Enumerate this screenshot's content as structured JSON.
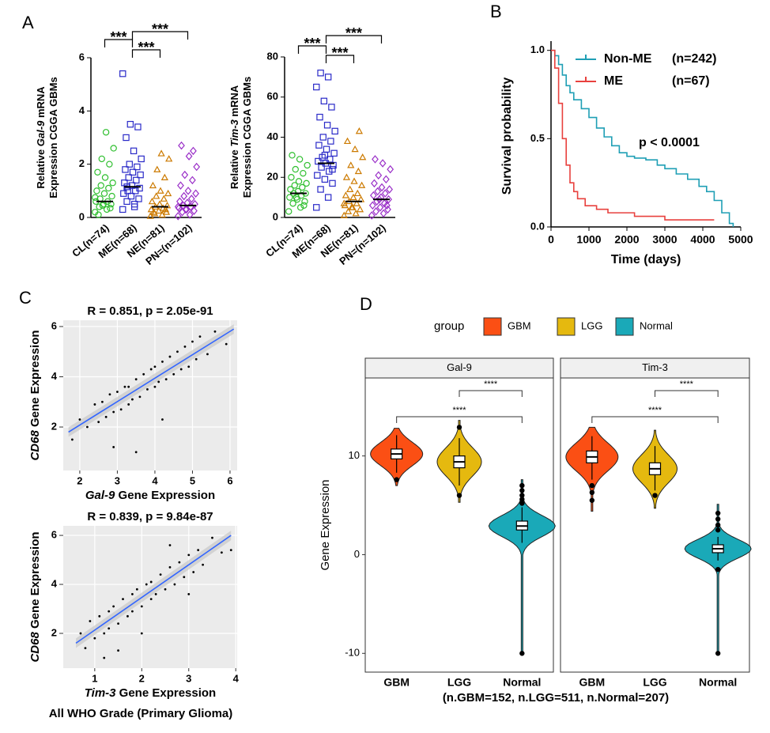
{
  "panel_labels": [
    "A",
    "B",
    "C",
    "D"
  ],
  "chart_data": [
    {
      "type": "strip",
      "ylabel": [
        [
          {
            "text": "Relative "
          },
          {
            "text": "Gal-9",
            "italic": true
          },
          {
            "text": " mRNA"
          }
        ],
        [
          {
            "text": "Expression CGGA GBMs"
          }
        ]
      ],
      "categories": [
        "CL(n=74)",
        "ME(n=68)",
        "NE(n=81)",
        "PN=(n=102)"
      ],
      "ylim": [
        0,
        6
      ],
      "yticks": [
        0,
        2,
        4,
        6
      ],
      "series": [
        {
          "color": "#2fbf2f",
          "marker": "circle",
          "median": 0.6,
          "values": [
            0.2,
            0.3,
            0.4,
            0.5,
            0.5,
            0.6,
            0.6,
            0.7,
            0.8,
            0.9,
            1.0,
            1.1,
            1.2,
            1.3,
            1.5,
            1.7,
            2.0,
            2.2,
            2.6,
            3.2,
            0.1,
            0.35,
            0.45,
            0.75
          ]
        },
        {
          "color": "#2a2ac8",
          "marker": "square",
          "median": 1.15,
          "values": [
            0.3,
            0.5,
            0.6,
            0.7,
            0.8,
            0.9,
            1.0,
            1.0,
            1.1,
            1.2,
            1.3,
            1.4,
            1.5,
            1.6,
            1.7,
            1.8,
            1.9,
            2.0,
            2.2,
            2.5,
            3.0,
            3.4,
            3.5,
            5.4,
            0.4,
            1.15
          ]
        },
        {
          "color": "#cc7a00",
          "marker": "triangle",
          "median": 0.4,
          "values": [
            0.05,
            0.1,
            0.15,
            0.2,
            0.25,
            0.3,
            0.35,
            0.4,
            0.45,
            0.5,
            0.6,
            0.7,
            0.8,
            0.9,
            1.0,
            1.2,
            1.5,
            1.8,
            2.2,
            2.4,
            0.2,
            0.3
          ]
        },
        {
          "color": "#9a2fc8",
          "marker": "diamond",
          "median": 0.45,
          "values": [
            0.05,
            0.1,
            0.2,
            0.25,
            0.3,
            0.35,
            0.4,
            0.45,
            0.5,
            0.55,
            0.6,
            0.7,
            0.8,
            0.9,
            1.0,
            1.2,
            1.4,
            1.6,
            1.9,
            2.3,
            2.7,
            2.5,
            0.3,
            0.4
          ]
        }
      ],
      "comparisons": [
        {
          "groups": [
            "CL(n=74)",
            "ME(n=68)"
          ],
          "label": "***"
        },
        {
          "groups": [
            "ME(n=68)",
            "PN=(n=102)"
          ],
          "label": "***"
        },
        {
          "groups": [
            "ME(n=68)",
            "NE(n=81)"
          ],
          "label": "***"
        }
      ]
    },
    {
      "type": "strip",
      "ylabel": [
        [
          {
            "text": "Relative "
          },
          {
            "text": "Tim-3",
            "italic": true
          },
          {
            "text": " mRNA"
          }
        ],
        [
          {
            "text": "Expression CGGA GBMs"
          }
        ]
      ],
      "categories": [
        "CL(n=74)",
        "ME(n=68)",
        "NE(n=81)",
        "PN=(n=102)"
      ],
      "ylim": [
        0,
        80
      ],
      "yticks": [
        0,
        20,
        40,
        60,
        80
      ],
      "series": [
        {
          "color": "#2fbf2f",
          "marker": "circle",
          "median": 12,
          "values": [
            3,
            5,
            7,
            8,
            9,
            10,
            11,
            12,
            12,
            13,
            14,
            15,
            16,
            17,
            18,
            20,
            22,
            24,
            26,
            29,
            31,
            6,
            10
          ]
        },
        {
          "color": "#2a2ac8",
          "marker": "square",
          "median": 27,
          "values": [
            5,
            10,
            14,
            17,
            19,
            21,
            23,
            25,
            26,
            27,
            28,
            29,
            30,
            32,
            34,
            36,
            38,
            40,
            43,
            46,
            50,
            55,
            58,
            65,
            70,
            72,
            24,
            31
          ]
        },
        {
          "color": "#cc7a00",
          "marker": "triangle",
          "median": 8,
          "values": [
            1,
            2,
            3,
            4,
            5,
            6,
            7,
            8,
            9,
            10,
            11,
            12,
            14,
            16,
            18,
            20,
            23,
            26,
            30,
            34,
            38,
            43,
            5,
            7
          ]
        },
        {
          "color": "#9a2fc8",
          "marker": "diamond",
          "median": 9,
          "values": [
            1,
            2,
            3,
            4,
            5,
            6,
            7,
            8,
            9,
            10,
            11,
            12,
            13,
            14,
            15,
            17,
            19,
            21,
            24,
            27,
            29,
            6,
            9
          ]
        }
      ],
      "comparisons": [
        {
          "groups": [
            "CL(n=74)",
            "ME(n=68)"
          ],
          "label": "***"
        },
        {
          "groups": [
            "ME(n=68)",
            "PN=(n=102)"
          ],
          "label": "***"
        },
        {
          "groups": [
            "ME(n=68)",
            "NE(n=81)"
          ],
          "label": "***"
        }
      ]
    },
    {
      "type": "survival",
      "xlabel": "Time (days)",
      "ylabel": "Survival probability",
      "annotation": "p < 0.0001",
      "xlim": [
        0,
        5000
      ],
      "xticks": [
        0,
        1000,
        2000,
        3000,
        4000,
        5000
      ],
      "ylim": [
        0,
        1.03
      ],
      "yticks": [
        {
          "value": 0,
          "label": "0.0"
        },
        0.5,
        {
          "value": 1,
          "label": "1.0"
        }
      ],
      "series": [
        {
          "name": "Non-ME",
          "n_label": "(n=242)",
          "color": "#1f9fb5",
          "x": [
            0,
            100,
            200,
            300,
            400,
            500,
            600,
            800,
            1000,
            1200,
            1400,
            1600,
            1800,
            2000,
            2200,
            2500,
            2800,
            3000,
            3300,
            3600,
            3900,
            4100,
            4300,
            4500,
            4700,
            4800
          ],
          "values": [
            1,
            0.97,
            0.92,
            0.86,
            0.8,
            0.76,
            0.72,
            0.67,
            0.62,
            0.56,
            0.51,
            0.46,
            0.42,
            0.4,
            0.39,
            0.38,
            0.35,
            0.33,
            0.3,
            0.27,
            0.23,
            0.2,
            0.15,
            0.08,
            0.02,
            0
          ]
        },
        {
          "name": "ME",
          "n_label": "(n=67)",
          "color": "#e8413e",
          "x": [
            0,
            100,
            200,
            300,
            400,
            500,
            600,
            700,
            900,
            1200,
            1500,
            2200,
            3000,
            4300
          ],
          "values": [
            1,
            0.9,
            0.7,
            0.5,
            0.35,
            0.25,
            0.2,
            0.16,
            0.12,
            0.1,
            0.08,
            0.06,
            0.04,
            0.04
          ]
        }
      ]
    },
    {
      "type": "scatter",
      "title": "R = 0.851, p = 2.05e-91",
      "xlabel": [
        {
          "text": "Gal-9",
          "italic": true
        },
        {
          "text": " Gene Expression"
        }
      ],
      "ylabel": [
        {
          "text": "CD68",
          "italic": true
        },
        {
          "text": " Gene Expression"
        }
      ],
      "xlim": [
        1.56,
        6.19
      ],
      "xticks": [
        2,
        3,
        4,
        5,
        6
      ],
      "ylim": [
        0.27,
        6.25
      ],
      "yticks": [
        2,
        4,
        6
      ],
      "x": [
        1.8,
        2.0,
        2.2,
        2.4,
        2.5,
        2.6,
        2.7,
        2.8,
        2.9,
        3.0,
        3.1,
        3.2,
        3.3,
        3.3,
        3.4,
        3.5,
        3.6,
        3.7,
        3.8,
        3.9,
        4.0,
        4.0,
        4.1,
        4.2,
        4.3,
        4.4,
        4.5,
        4.6,
        4.7,
        4.8,
        4.9,
        5.0,
        5.1,
        5.2,
        5.4,
        5.6,
        5.9,
        3.5,
        4.2,
        2.9
      ],
      "values": [
        1.5,
        2.3,
        2.0,
        2.9,
        2.2,
        3.0,
        2.4,
        3.3,
        2.6,
        3.4,
        2.7,
        3.6,
        2.9,
        3.6,
        3.1,
        3.9,
        3.2,
        4.1,
        3.5,
        4.3,
        3.6,
        4.4,
        3.8,
        4.6,
        3.9,
        4.8,
        4.1,
        5.0,
        4.3,
        5.2,
        4.4,
        5.4,
        4.7,
        5.6,
        4.9,
        5.8,
        5.3,
        1.0,
        2.3,
        1.2
      ],
      "fit_x": [
        1.7,
        6.1
      ],
      "fit_y": [
        1.8,
        5.9
      ],
      "fit_color": "#3366ff"
    },
    {
      "type": "scatter",
      "title": "R = 0.839, p = 9.84e-87",
      "caption": "All WHO Grade (Primary Glioma)",
      "xlabel": [
        {
          "text": "Tim-3",
          "italic": true
        },
        {
          "text": " Gene Expression"
        }
      ],
      "ylabel": [
        {
          "text": "CD68",
          "italic": true
        },
        {
          "text": " Gene Expression"
        }
      ],
      "xlim": [
        0.33,
        4.03
      ],
      "xticks": [
        1,
        2,
        3,
        4
      ],
      "ylim": [
        0.58,
        6.39
      ],
      "yticks": [
        2,
        4,
        6
      ],
      "x": [
        0.7,
        0.8,
        0.9,
        1.0,
        1.1,
        1.2,
        1.3,
        1.3,
        1.4,
        1.5,
        1.6,
        1.7,
        1.8,
        1.8,
        1.9,
        2.0,
        2.1,
        2.2,
        2.2,
        2.3,
        2.4,
        2.5,
        2.6,
        2.7,
        2.8,
        2.9,
        3.0,
        3.1,
        3.2,
        3.3,
        3.5,
        3.7,
        3.9,
        1.5,
        2.0,
        2.6,
        1.2,
        3.0
      ],
      "values": [
        2.0,
        1.4,
        2.5,
        1.8,
        2.7,
        2.0,
        2.9,
        2.2,
        3.1,
        2.4,
        3.4,
        2.7,
        3.6,
        2.9,
        3.8,
        3.1,
        4.0,
        3.4,
        4.1,
        3.6,
        4.4,
        3.8,
        4.7,
        4.0,
        4.9,
        4.3,
        5.2,
        4.5,
        5.4,
        4.8,
        5.9,
        5.3,
        5.4,
        1.3,
        2.0,
        5.6,
        1.0,
        3.6
      ],
      "fit_x": [
        0.6,
        3.9
      ],
      "fit_y": [
        1.6,
        6.0
      ],
      "fit_color": "#3366ff"
    },
    {
      "type": "violin",
      "legend_title": "group",
      "ylabel": "Gene Expression",
      "caption": "(n.GBM=152, n.LGG=511, n.Normal=207)",
      "ylim": [
        -11.9,
        17.9
      ],
      "yticks": [
        -10,
        0,
        10
      ],
      "groups": [
        {
          "name": "GBM",
          "color": "#fb4f14"
        },
        {
          "name": "LGG",
          "color": "#e5b90f"
        },
        {
          "name": "Normal",
          "color": "#1aa9b8"
        }
      ],
      "facets": [
        {
          "name": "Gal-9",
          "groups": [
            {
              "name": "GBM",
              "median": 10.2,
              "q1": 9.7,
              "q3": 10.7,
              "whisker_low": 8.3,
              "whisker_high": 12.1,
              "min": 7.0,
              "max": 12.8,
              "outliers": [
                7.6
              ]
            },
            {
              "name": "LGG",
              "median": 9.4,
              "q1": 8.8,
              "q3": 10.0,
              "whisker_low": 7.0,
              "whisker_high": 11.8,
              "min": 5.3,
              "max": 13.6,
              "outliers": [
                6.0,
                12.9
              ]
            },
            {
              "name": "Normal",
              "median": 2.9,
              "q1": 2.5,
              "q3": 3.4,
              "whisker_low": 1.2,
              "whisker_high": 4.8,
              "min": -10,
              "max": 7.6,
              "outliers": [
                -10,
                5.2,
                5.6,
                6.0,
                6.5,
                7.0
              ]
            }
          ]
        },
        {
          "name": "Tim-3",
          "groups": [
            {
              "name": "GBM",
              "median": 9.9,
              "q1": 9.3,
              "q3": 10.5,
              "whisker_low": 7.6,
              "whisker_high": 12.0,
              "min": 4.4,
              "max": 12.9,
              "outliers": [
                7.0,
                6.3,
                5.5
              ]
            },
            {
              "name": "LGG",
              "median": 8.7,
              "q1": 8.1,
              "q3": 9.3,
              "whisker_low": 6.5,
              "whisker_high": 11.0,
              "min": 4.7,
              "max": 12.6,
              "outliers": [
                6.0
              ]
            },
            {
              "name": "Normal",
              "median": 0.6,
              "q1": 0.2,
              "q3": 1.0,
              "whisker_low": -0.6,
              "whisker_high": 1.8,
              "min": -10,
              "max": 5.1,
              "outliers": [
                -10,
                -1.5,
                2.5,
                3.0,
                3.6,
                4.2
              ]
            }
          ]
        }
      ],
      "comparisons": [
        {
          "groups": [
            "LGG",
            "Normal"
          ],
          "label": "****"
        },
        {
          "groups": [
            "GBM",
            "Normal"
          ],
          "label": "****"
        }
      ]
    }
  ]
}
